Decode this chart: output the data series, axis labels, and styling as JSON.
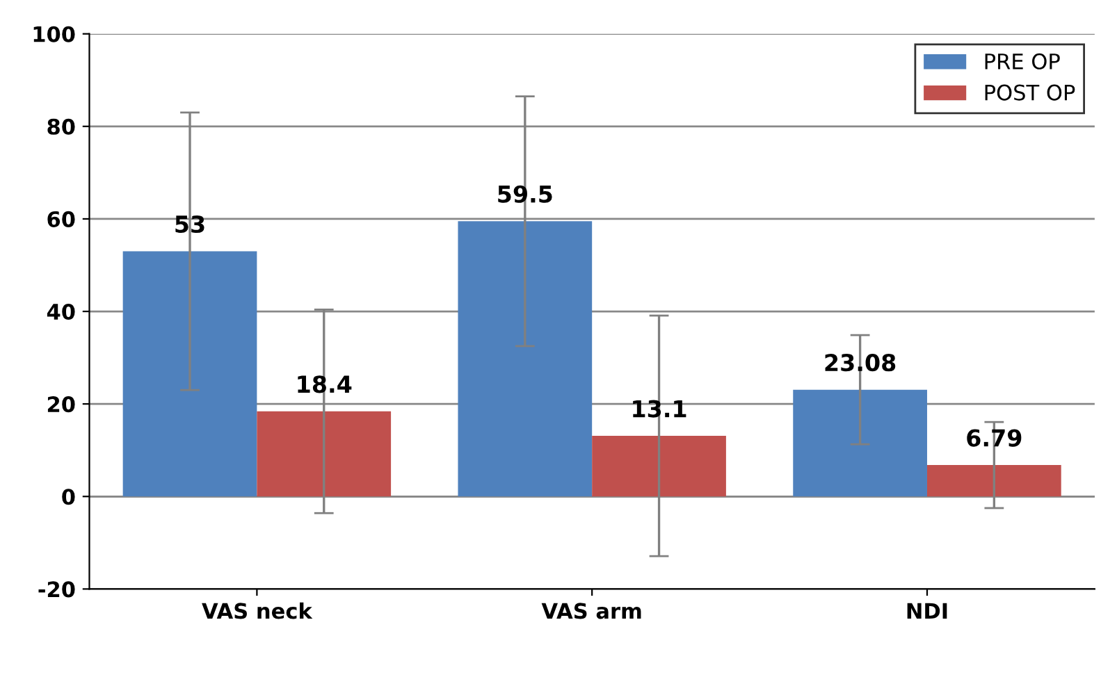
{
  "chart_data": {
    "type": "bar",
    "categories": [
      "VAS neck",
      "VAS arm",
      "NDI"
    ],
    "series": [
      {
        "name": "PRE OP",
        "color": "#4f81bd",
        "values": [
          53,
          59.5,
          23.08
        ],
        "errors": [
          30,
          27,
          11.8
        ]
      },
      {
        "name": "POST OP",
        "color": "#c0504d",
        "values": [
          18.4,
          13.1,
          6.79
        ],
        "errors": [
          22,
          26,
          9.3
        ]
      }
    ],
    "ylim": [
      -20,
      100
    ],
    "yticks": [
      -20,
      0,
      20,
      40,
      60,
      80,
      100
    ],
    "grid": "y",
    "legend": "top right",
    "data_labels": true
  }
}
